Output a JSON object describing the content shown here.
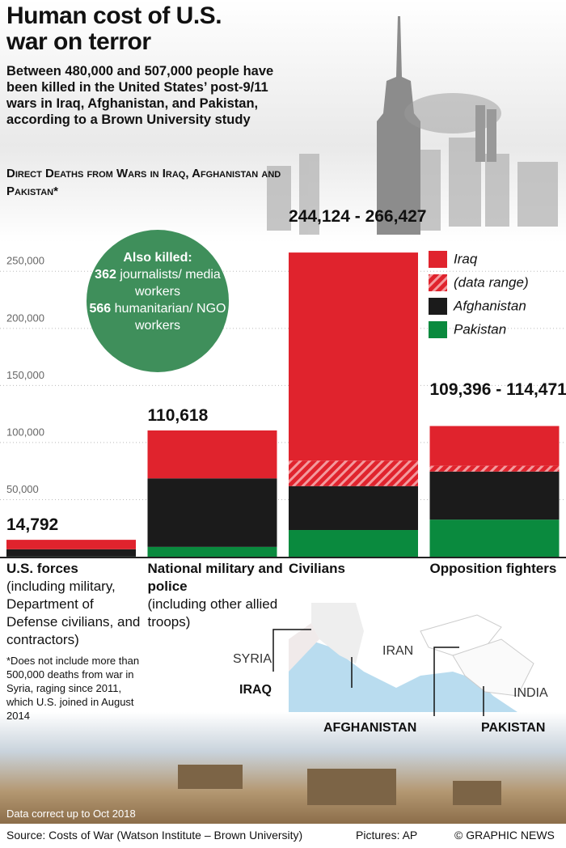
{
  "chart_data": {
    "type": "stacked_bar",
    "title": "Human cost of U.S. war on terror",
    "subtitle": "Between 480,000 and 507,000 people have been killed in the United States’ post-9/11 wars in Iraq, Afghanistan, and Pakistan, according to a Brown University study",
    "chart_subtitle": "Direct Deaths from Wars in Iraq, Afghanistan and Pakistan*",
    "categories": [
      "U.S. forces",
      "National military and police",
      "Civilians",
      "Opposition fighters"
    ],
    "category_notes": [
      "(including military, Department of Defense civilians, and contractors)",
      "(including other allied troops)",
      null,
      null
    ],
    "total_labels": [
      "14,792",
      "110,618",
      "244,124 - 266,427",
      "109,396 - 114,471"
    ],
    "series": [
      {
        "name": "Iraq",
        "color": "#e0232d",
        "values": [
          8300,
          42000,
          182272,
          34806
        ]
      },
      {
        "name": "(data range)",
        "color": "#e0232d",
        "hatch": true,
        "values": [
          null,
          null,
          22303,
          5075
        ]
      },
      {
        "name": "Afghanistan",
        "color": "#1b1b1b",
        "values": [
          6400,
          60000,
          38480,
          42100
        ]
      },
      {
        "name": "Pakistan",
        "color": "#0a8a3e",
        "values": [
          100,
          8600,
          23372,
          32490
        ]
      }
    ],
    "ylim": [
      0,
      275000
    ],
    "yticks": [
      {
        "value": 50000,
        "label": "50,000"
      },
      {
        "value": 100000,
        "label": "100,000"
      },
      {
        "value": 150000,
        "label": "150,000"
      },
      {
        "value": 200000,
        "label": "200,000"
      },
      {
        "value": 250000,
        "label": "250,000"
      }
    ],
    "grid": true,
    "legend": "top-right",
    "annotation": {
      "heading": "Also killed:",
      "items": [
        {
          "count": 362,
          "label": "journalists/ media workers"
        },
        {
          "count": 566,
          "label": "humanitarian/ NGO workers"
        }
      ]
    },
    "footnote": "*Does not include more than 500,000 deaths from war in Syria, raging since 2011, which U.S. joined in August 2014",
    "map_labels": {
      "syria": "SYRIA",
      "iran": "IRAN",
      "iraq": "IRAQ",
      "india": "INDIA",
      "afghanistan": "AFGHANISTAN",
      "pakistan": "PAKISTAN"
    },
    "data_note": "Data correct up to Oct 2018",
    "source": "Source: Costs of War (Watson Institute – Brown University)",
    "pictures": "Pictures: AP",
    "credit": "© GRAPHIC NEWS"
  }
}
